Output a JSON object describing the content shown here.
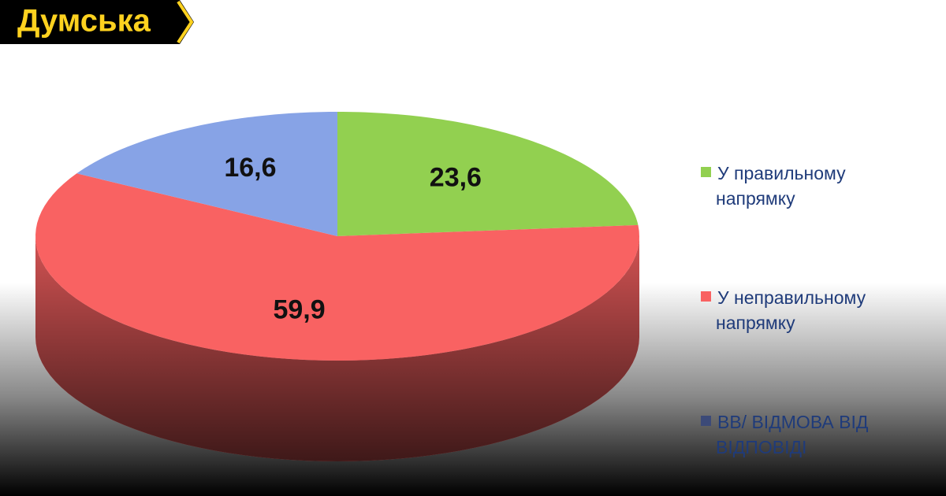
{
  "brand": "Думська",
  "chart_data": {
    "type": "pie3d",
    "categories": [
      [
        "У правильному",
        "напрямку"
      ],
      [
        "У неправильному",
        "напрямку"
      ],
      [
        "ВВ/ ВІДМОВА ВІД",
        "ВІДПОВІДІ"
      ]
    ],
    "values": [
      23.6,
      59.9,
      16.6
    ],
    "value_labels": [
      "23,6",
      "59,9",
      "16,6"
    ],
    "colors": [
      "#92d050",
      "#f96262",
      "#87a3e6"
    ],
    "legend_colors": [
      "#92d050",
      "#f96262",
      "#3c4a78"
    ],
    "legend": "right"
  }
}
